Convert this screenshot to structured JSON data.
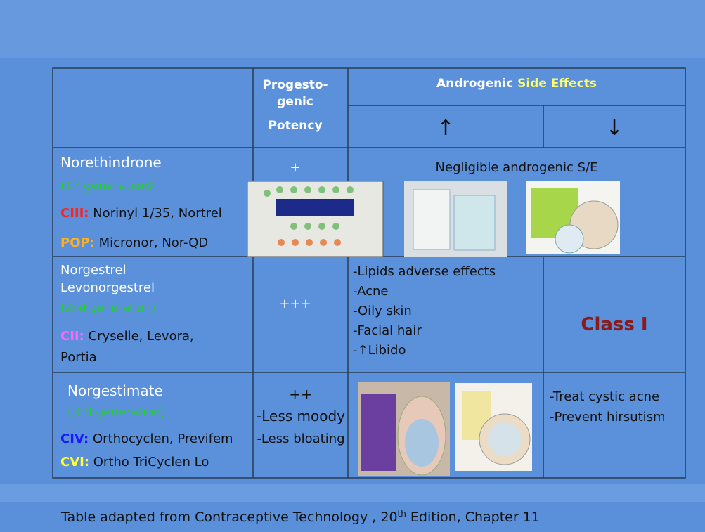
{
  "header": {
    "potency": [
      "Progesto-",
      "genic",
      "Potency"
    ],
    "androgenic": "Androgenic",
    "side_effects": " Side Effects",
    "up": "↑",
    "down": "↓"
  },
  "rows": [
    {
      "names": [
        "Norethindrone"
      ],
      "generation": {
        "prefix": "(1",
        "sup": "st",
        "suffix": " generation)"
      },
      "brands": [
        {
          "label": "CIII:",
          "lines": [
            " Norinyl 1/35, Nortrel"
          ]
        },
        {
          "label": "POP:",
          "lines": [
            " Micronor, Nor-QD"
          ]
        }
      ],
      "potency": [
        "+"
      ],
      "effects": [
        "Negligible androgenic S/E"
      ]
    },
    {
      "names": [
        "Norgestrel",
        "Levonorgestrel"
      ],
      "generation": {
        "prefix": "(2nd generation)"
      },
      "brands": [
        {
          "label": "CII:",
          "lines": [
            " Cryselle, Levora,",
            "Portia"
          ]
        }
      ],
      "potency": [
        "+++"
      ],
      "effects_up": [
        "-Lipids adverse effects",
        "-Acne",
        "-Oily skin",
        "-Facial hair",
        "-↑Libido"
      ],
      "effects_down": [
        "Class I"
      ]
    },
    {
      "names": [
        "Norgestimate"
      ],
      "generation": {
        "prefix": "(3rd generation)"
      },
      "brands": [
        {
          "label": "CIV:",
          "lines": [
            " Orthocyclen, Previfem"
          ]
        },
        {
          "label": "CVI:",
          "lines": [
            " Ortho TriCyclen Lo"
          ]
        }
      ],
      "potency": [
        "++",
        "-Less moody",
        "-Less bloating"
      ],
      "effects_down": [
        "-Treat cystic acne",
        "-Prevent hirsutism"
      ]
    }
  ],
  "footer": {
    "before": "Table adapted from Contraceptive Technology , 20",
    "sup": "th",
    "after": " Edition, Chapter 11"
  }
}
